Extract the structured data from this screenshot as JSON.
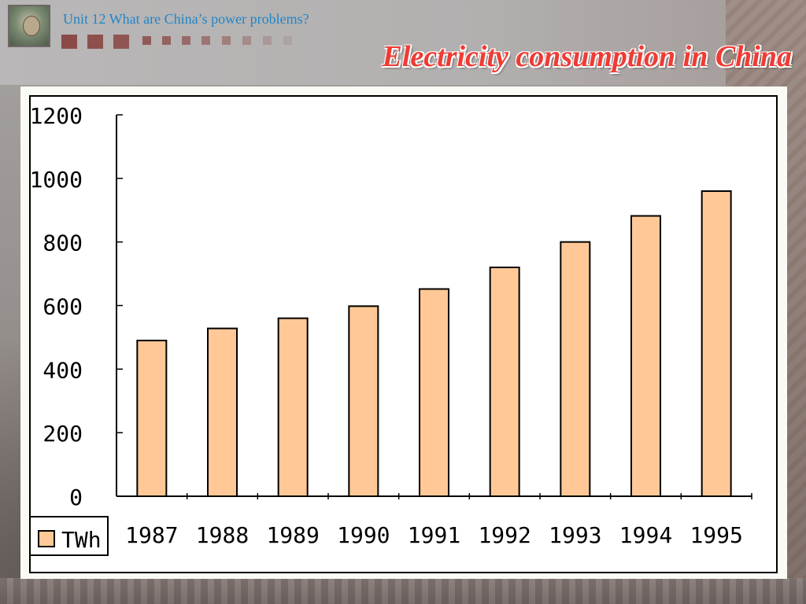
{
  "header": {
    "unit_title": "Unit 12  What are China’s power problems?",
    "title": "Electricity consumption in China"
  },
  "colors": {
    "unit_title": "#1f86c8",
    "title": "#ef3b34",
    "bar_fill": "#ffc896",
    "bar_stroke": "#000000",
    "deco_squares": "#8b4a48"
  },
  "logo": {
    "icon": "portrait-photo-icon"
  },
  "chart_data": {
    "type": "bar",
    "title": "Electricity consumption in China",
    "categories": [
      "1987",
      "1988",
      "1989",
      "1990",
      "1991",
      "1992",
      "1993",
      "1994",
      "1995"
    ],
    "series": [
      {
        "name": "TWh",
        "values": [
          490,
          528,
          560,
          598,
          652,
          720,
          800,
          882,
          960
        ]
      }
    ],
    "yticks": [
      "0",
      "200",
      "400",
      "600",
      "800",
      "1000",
      "1200"
    ],
    "ylim": [
      0,
      1200
    ],
    "xlabel": "",
    "ylabel": "",
    "grid": false,
    "legend_position": "bottom-left"
  }
}
